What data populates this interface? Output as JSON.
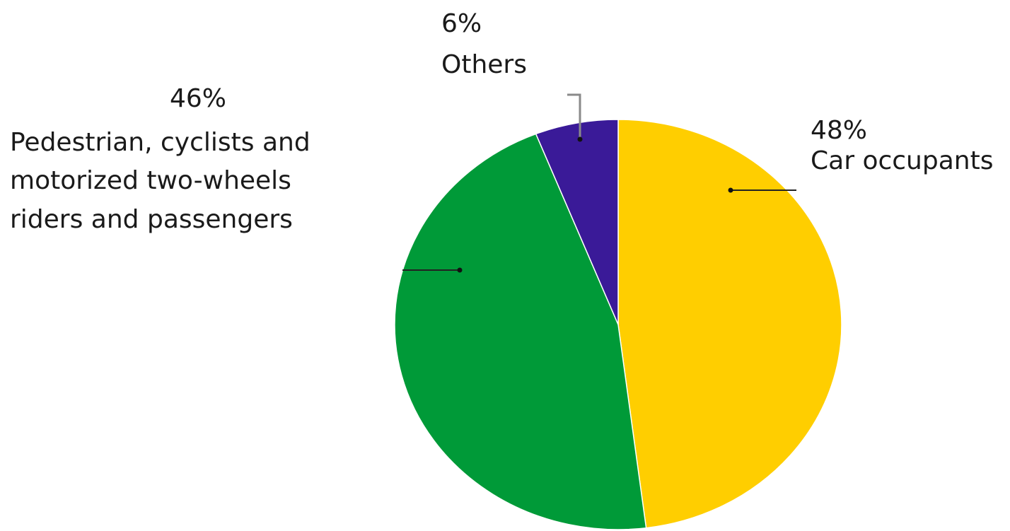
{
  "chart_data": {
    "type": "pie",
    "slices": [
      {
        "value": 48,
        "percent_label": "48%",
        "label": "Car occupants",
        "color": "#FFCE00"
      },
      {
        "value": 46,
        "percent_label": "46%",
        "label": "Pedestrian, cyclists and motorized two-wheels riders and passengers",
        "label_lines": [
          "Pedestrian, cyclists and",
          "motorized two-wheels",
          "riders and passengers"
        ],
        "color": "#009A38"
      },
      {
        "value": 6,
        "percent_label": "6%",
        "label": "Others",
        "color": "#3A1A98"
      }
    ],
    "start_angle": "12 o'clock",
    "direction": "clockwise",
    "legend": "none"
  }
}
